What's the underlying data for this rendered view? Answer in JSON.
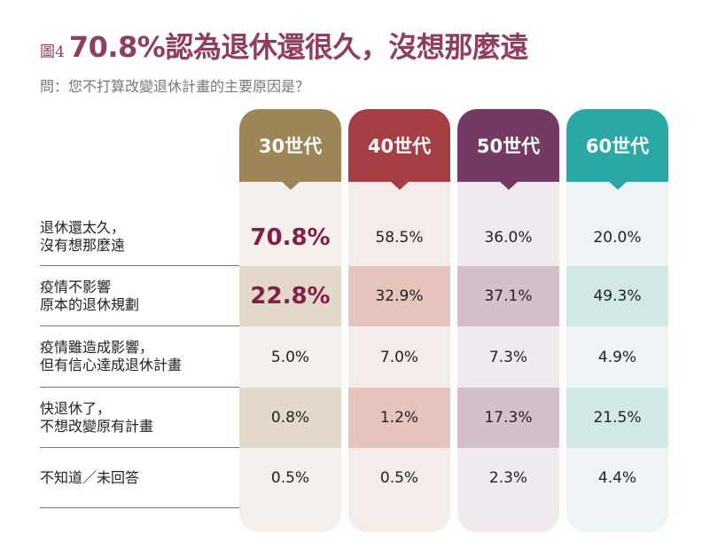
{
  "title": {
    "figure": "圖4",
    "main": "70.8%認為退休還很久，沒想那麼遠"
  },
  "subtitle": "問：您不打算改變退休計畫的主要原因是？",
  "chart_data": {
    "type": "table",
    "columns": [
      {
        "label": "30世代",
        "color": "#9e8558",
        "light": "#f5f0eb",
        "dark": "#e3d9c8"
      },
      {
        "label": "40世代",
        "color": "#a63f45",
        "light": "#f3ece9",
        "dark": "#e4c4bc"
      },
      {
        "label": "50世代",
        "color": "#733a63",
        "light": "#f0e9ef",
        "dark": "#d3c0cc"
      },
      {
        "label": "60世代",
        "color": "#2ba8a5",
        "light": "#eef4f5",
        "dark": "#d2e8e6"
      }
    ],
    "rows": [
      {
        "label": [
          "退休還太久，",
          "沒有想那麼遠"
        ],
        "values": [
          "70.8%",
          "58.5%",
          "36.0%",
          "20.0%"
        ],
        "highlight": [
          true,
          false,
          false,
          false
        ]
      },
      {
        "label": [
          "疫情不影響",
          "原本的退休規劃"
        ],
        "values": [
          "22.8%",
          "32.9%",
          "37.1%",
          "49.3%"
        ],
        "highlight": [
          true,
          false,
          false,
          false
        ]
      },
      {
        "label": [
          "疫情雖造成影響，",
          "但有信心達成退休計畫"
        ],
        "values": [
          "5.0%",
          "7.0%",
          "7.3%",
          "4.9%"
        ],
        "highlight": [
          false,
          false,
          false,
          false
        ]
      },
      {
        "label": [
          "快退休了，",
          "不想改變原有計畫"
        ],
        "values": [
          "0.8%",
          "1.2%",
          "17.3%",
          "21.5%"
        ],
        "highlight": [
          false,
          false,
          false,
          false
        ]
      },
      {
        "label": [
          "不知道／未回答"
        ],
        "values": [
          "0.5%",
          "0.5%",
          "2.3%",
          "4.4%"
        ],
        "highlight": [
          false,
          false,
          false,
          false
        ]
      }
    ],
    "highlight_color": "#7f1f4a"
  }
}
